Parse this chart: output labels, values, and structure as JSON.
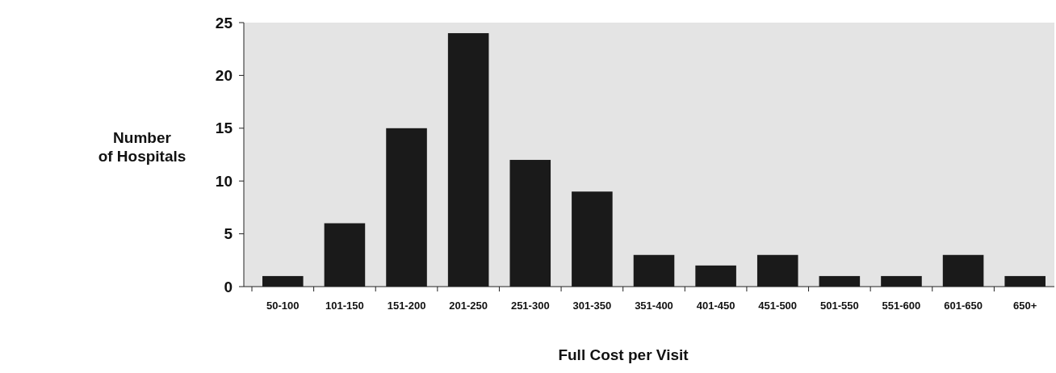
{
  "chart_data": {
    "type": "bar",
    "xlabel": "Full Cost per Visit",
    "ylabel": "Number of Hospitals",
    "categories": [
      "50-100",
      "101-150",
      "151-200",
      "201-250",
      "251-300",
      "301-350",
      "351-400",
      "401-450",
      "451-500",
      "501-550",
      "551-600",
      "601-650",
      "650+"
    ],
    "values": [
      1,
      6,
      15,
      24,
      12,
      9,
      3,
      2,
      3,
      1,
      1,
      3,
      1
    ],
    "color": "#1a1a1a",
    "ylim": [
      0,
      25
    ],
    "yticks": [
      0,
      5,
      10,
      15,
      20,
      25
    ]
  }
}
